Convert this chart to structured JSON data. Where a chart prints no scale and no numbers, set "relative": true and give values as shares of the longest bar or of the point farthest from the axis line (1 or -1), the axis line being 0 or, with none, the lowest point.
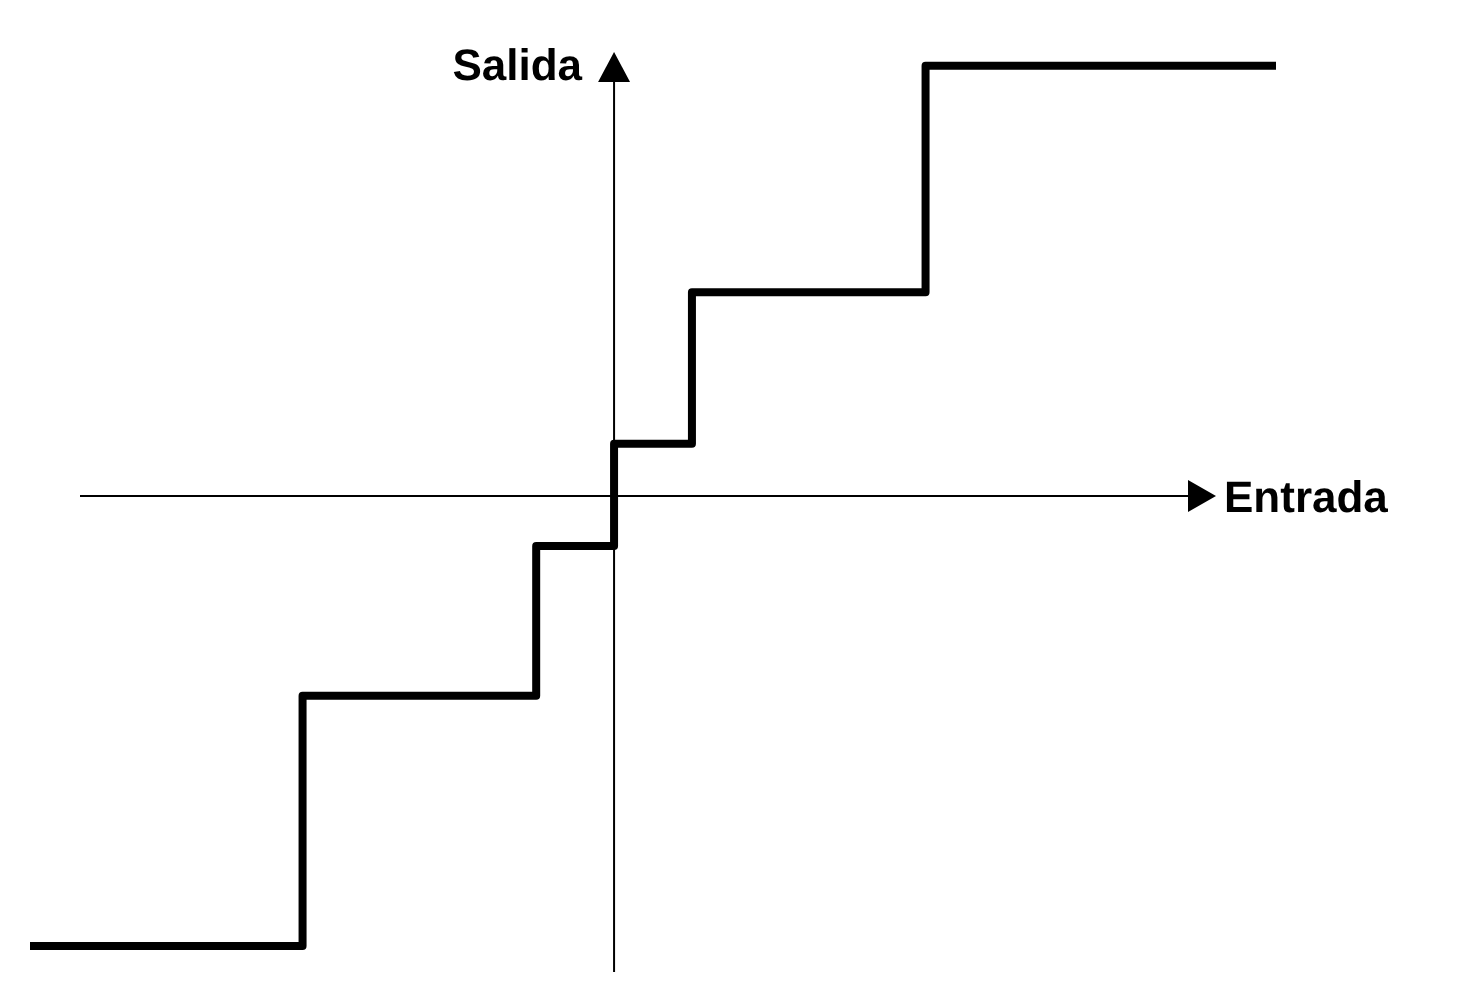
{
  "chart_data": {
    "type": "step",
    "relative": true,
    "xlabel": "Entrada",
    "ylabel": "Salida",
    "categories": [
      null,
      null,
      null,
      null,
      null,
      null,
      null,
      null,
      null,
      null,
      null,
      null,
      null,
      null,
      null,
      null,
      null,
      null,
      null,
      null,
      null,
      null,
      null,
      null,
      null,
      null,
      null,
      null,
      null,
      null,
      null,
      null,
      null
    ],
    "series": [
      {
        "color": "#000000",
        "values": [
          -1,
          -1,
          -1,
          -1,
          -1,
          -1,
          -1,
          -0.444,
          -0.444,
          -0.444,
          -0.444,
          -0.444,
          -0.444,
          -0.111,
          -0.111,
          0.116,
          0.116,
          0.453,
          0.453,
          0.453,
          0.453,
          0.453,
          0.453,
          0.956,
          0.956,
          0.956,
          0.956,
          0.956,
          0.956,
          0.956,
          0.956,
          0.956,
          0.956
        ]
      }
    ]
  }
}
